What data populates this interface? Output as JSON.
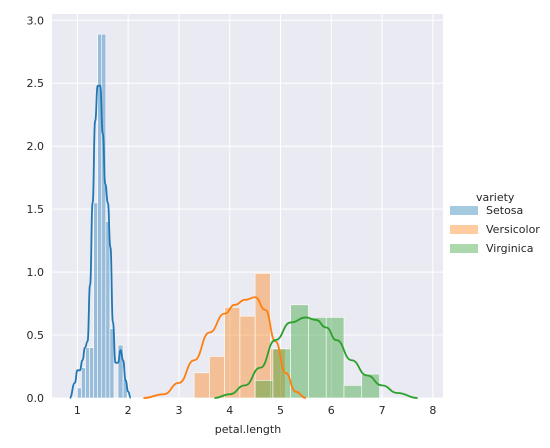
{
  "chart_data": {
    "type": "histogram",
    "style": "seaborn darkgrid",
    "xlabel": "petal.length",
    "ylabel": "",
    "xlim": [
      0.5,
      8.2
    ],
    "ylim": [
      0,
      3.05
    ],
    "xticks": [
      1,
      2,
      3,
      4,
      5,
      6,
      7,
      8
    ],
    "yticks": [
      0.0,
      0.5,
      1.0,
      1.5,
      2.0,
      2.5,
      3.0
    ],
    "grid": true,
    "legend": {
      "title": "variety",
      "placement": "right"
    },
    "series": [
      {
        "name": "Setosa",
        "color": "#1f77b4",
        "bins": [
          {
            "x0": 1.0,
            "x1": 1.08,
            "h": 0.08
          },
          {
            "x0": 1.08,
            "x1": 1.16,
            "h": 0.24
          },
          {
            "x0": 1.16,
            "x1": 1.24,
            "h": 0.4
          },
          {
            "x0": 1.24,
            "x1": 1.32,
            "h": 0.4
          },
          {
            "x0": 1.32,
            "x1": 1.4,
            "h": 1.55
          },
          {
            "x0": 1.4,
            "x1": 1.48,
            "h": 2.89
          },
          {
            "x0": 1.48,
            "x1": 1.56,
            "h": 2.89
          },
          {
            "x0": 1.56,
            "x1": 1.64,
            "h": 1.4
          },
          {
            "x0": 1.64,
            "x1": 1.72,
            "h": 0.55
          },
          {
            "x0": 1.72,
            "x1": 1.8,
            "h": 0.0
          },
          {
            "x0": 1.8,
            "x1": 1.9,
            "h": 0.42
          },
          {
            "x0": 1.9,
            "x1": 1.98,
            "h": 0.15
          }
        ],
        "kde_x": [
          0.85,
          0.95,
          1.0,
          1.05,
          1.1,
          1.15,
          1.2,
          1.25,
          1.3,
          1.35,
          1.4,
          1.45,
          1.5,
          1.55,
          1.6,
          1.65,
          1.7,
          1.75,
          1.8,
          1.85,
          1.9,
          1.95,
          2.0,
          2.05
        ],
        "kde_y": [
          0.0,
          0.12,
          0.22,
          0.22,
          0.3,
          0.4,
          0.45,
          0.9,
          1.55,
          2.2,
          2.48,
          2.48,
          2.1,
          1.7,
          1.55,
          1.2,
          0.6,
          0.28,
          0.28,
          0.38,
          0.3,
          0.14,
          0.05,
          0.0
        ]
      },
      {
        "name": "Versicolor",
        "color": "#ff7f0e",
        "bins": [
          {
            "x0": 3.3,
            "x1": 3.6,
            "h": 0.2
          },
          {
            "x0": 3.6,
            "x1": 3.9,
            "h": 0.33
          },
          {
            "x0": 3.9,
            "x1": 4.2,
            "h": 0.72
          },
          {
            "x0": 4.2,
            "x1": 4.5,
            "h": 0.65
          },
          {
            "x0": 4.5,
            "x1": 4.8,
            "h": 0.99
          },
          {
            "x0": 4.8,
            "x1": 5.1,
            "h": 0.39
          }
        ],
        "kde_x": [
          2.3,
          2.7,
          3.0,
          3.3,
          3.6,
          3.9,
          4.1,
          4.3,
          4.5,
          4.7,
          4.9,
          5.1,
          5.3,
          5.5
        ],
        "kde_y": [
          0.0,
          0.03,
          0.12,
          0.3,
          0.52,
          0.67,
          0.74,
          0.78,
          0.8,
          0.7,
          0.45,
          0.2,
          0.05,
          0.0
        ]
      },
      {
        "name": "Virginica",
        "color": "#2ca02c",
        "bins": [
          {
            "x0": 4.5,
            "x1": 4.85,
            "h": 0.14
          },
          {
            "x0": 4.85,
            "x1": 5.2,
            "h": 0.39
          },
          {
            "x0": 5.2,
            "x1": 5.55,
            "h": 0.74
          },
          {
            "x0": 5.55,
            "x1": 5.9,
            "h": 0.64
          },
          {
            "x0": 5.9,
            "x1": 6.25,
            "h": 0.64
          },
          {
            "x0": 6.25,
            "x1": 6.6,
            "h": 0.1
          },
          {
            "x0": 6.6,
            "x1": 6.95,
            "h": 0.19
          }
        ],
        "kde_x": [
          3.7,
          4.0,
          4.3,
          4.6,
          4.9,
          5.2,
          5.5,
          5.7,
          5.9,
          6.1,
          6.4,
          6.7,
          7.0,
          7.3,
          7.7
        ],
        "kde_y": [
          0.0,
          0.03,
          0.1,
          0.24,
          0.46,
          0.6,
          0.64,
          0.62,
          0.56,
          0.46,
          0.3,
          0.18,
          0.1,
          0.04,
          0.0
        ]
      }
    ]
  }
}
